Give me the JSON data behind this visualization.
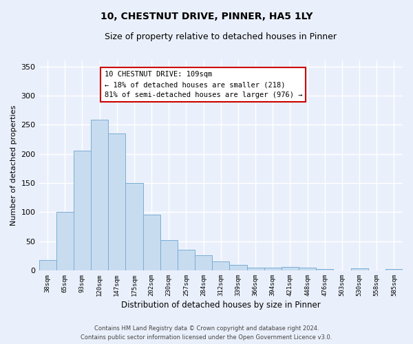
{
  "title": "10, CHESTNUT DRIVE, PINNER, HA5 1LY",
  "subtitle": "Size of property relative to detached houses in Pinner",
  "xlabel": "Distribution of detached houses by size in Pinner",
  "ylabel": "Number of detached properties",
  "bar_labels": [
    "38sqm",
    "65sqm",
    "93sqm",
    "120sqm",
    "147sqm",
    "175sqm",
    "202sqm",
    "230sqm",
    "257sqm",
    "284sqm",
    "312sqm",
    "339sqm",
    "366sqm",
    "394sqm",
    "421sqm",
    "448sqm",
    "476sqm",
    "503sqm",
    "530sqm",
    "558sqm",
    "585sqm"
  ],
  "bar_values": [
    18,
    100,
    205,
    258,
    235,
    150,
    96,
    52,
    35,
    26,
    15,
    9,
    5,
    5,
    6,
    5,
    2,
    0,
    3,
    0,
    2
  ],
  "bar_color": "#c8dcf0",
  "bar_edge_color": "#7aadd4",
  "background_color": "#eaf0fb",
  "grid_color": "#ffffff",
  "annotation_text": "10 CHESTNUT DRIVE: 109sqm\n← 18% of detached houses are smaller (218)\n81% of semi-detached houses are larger (976) →",
  "annotation_box_color": "#ffffff",
  "annotation_box_edge_color": "#cc0000",
  "ylim": [
    0,
    360
  ],
  "yticks": [
    0,
    50,
    100,
    150,
    200,
    250,
    300,
    350
  ],
  "fig_facecolor": "#eaf0fb",
  "footer_line1": "Contains HM Land Registry data © Crown copyright and database right 2024.",
  "footer_line2": "Contains public sector information licensed under the Open Government Licence v3.0."
}
